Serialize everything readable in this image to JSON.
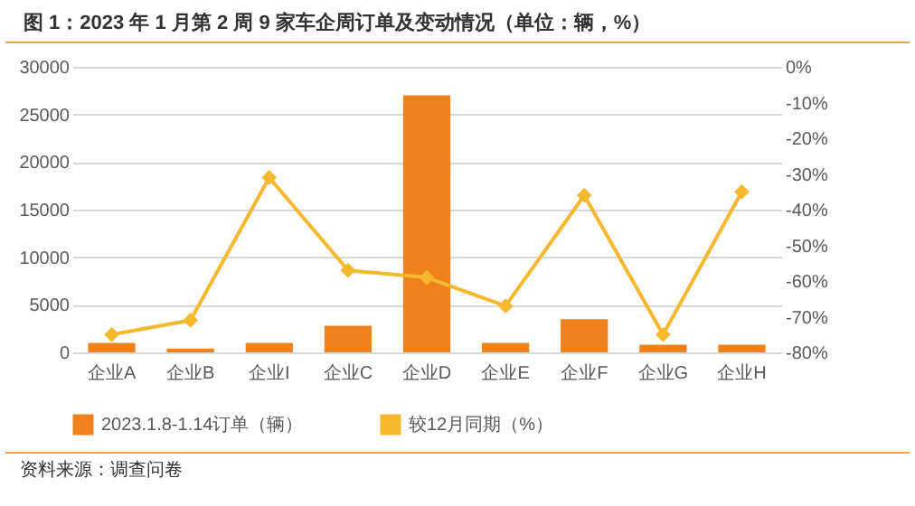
{
  "chart_data": {
    "type": "bar",
    "title": "图 1：2023 年 1 月第 2 周 9 家车企周订单及变动情况（单位：辆，%）",
    "annotations": [
      "资料来源：调查问卷"
    ],
    "categories": [
      "企业A",
      "企业B",
      "企业I",
      "企业C",
      "企业D",
      "企业E",
      "企业F",
      "企业G",
      "企业H"
    ],
    "series": [
      {
        "name": "2023.1.8-1.14订单（辆）",
        "color": "#f0821e",
        "values": [
          1000,
          400,
          1000,
          2800,
          27000,
          1000,
          3500,
          800,
          800
        ]
      },
      {
        "name": "较12月同期（%）",
        "type": "line",
        "axis": "y2",
        "color": "#f5b82e",
        "values": [
          -75,
          -71,
          -31,
          -57,
          -59,
          -67,
          -36,
          -75,
          -35
        ]
      }
    ],
    "ylim": [
      0,
      30000
    ],
    "yticks": [
      0,
      5000,
      10000,
      15000,
      20000,
      25000,
      30000
    ],
    "y2lim": [
      -80,
      0
    ],
    "y2ticks": [
      {
        "value": 0,
        "label": "0%"
      },
      {
        "value": -10,
        "label": "-10%"
      },
      {
        "value": -20,
        "label": "-20%"
      },
      {
        "value": -30,
        "label": "-30%"
      },
      {
        "value": -40,
        "label": "-40%"
      },
      {
        "value": -50,
        "label": "-50%"
      },
      {
        "value": -60,
        "label": "-60%"
      },
      {
        "value": -70,
        "label": "-70%"
      },
      {
        "value": -80,
        "label": "-80%"
      }
    ],
    "grid": "y",
    "legend": "bottom",
    "marker": "diamond",
    "line_style": "solid"
  }
}
